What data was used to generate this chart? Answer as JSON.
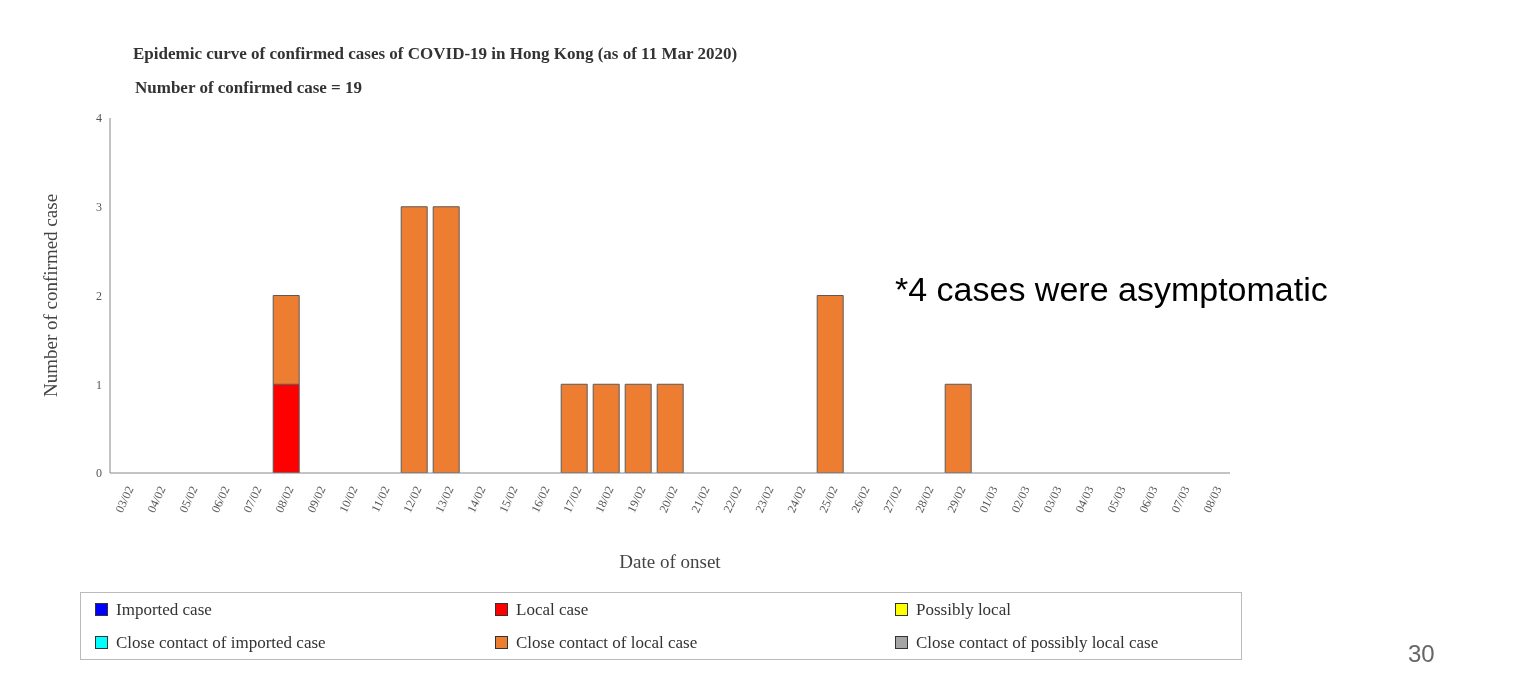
{
  "chart_data": {
    "type": "bar",
    "title": "Epidemic curve of confirmed cases of COVID-19 in Hong Kong (as of 11 Mar 2020)",
    "subtitle": "Number of confirmed case = 19",
    "xlabel": "Date of onset",
    "ylabel": "Number of confirmed case",
    "categories": [
      "03/02",
      "04/02",
      "05/02",
      "06/02",
      "07/02",
      "08/02",
      "09/02",
      "10/02",
      "11/02",
      "12/02",
      "13/02",
      "14/02",
      "15/02",
      "16/02",
      "17/02",
      "18/02",
      "19/02",
      "20/02",
      "21/02",
      "22/02",
      "23/02",
      "24/02",
      "25/02",
      "26/02",
      "27/02",
      "28/02",
      "29/02",
      "01/03",
      "02/03",
      "03/03",
      "04/03",
      "05/03",
      "06/03",
      "07/03",
      "08/03"
    ],
    "stacked": true,
    "ylim": [
      0,
      4
    ],
    "yticks": [
      0,
      1,
      2,
      3,
      4
    ],
    "legend": "bottom",
    "series": [
      {
        "name": "Imported case",
        "color": "#0000ff",
        "values": [
          0,
          0,
          0,
          0,
          0,
          0,
          0,
          0,
          0,
          0,
          0,
          0,
          0,
          0,
          0,
          0,
          0,
          0,
          0,
          0,
          0,
          0,
          0,
          0,
          0,
          0,
          0,
          0,
          0,
          0,
          0,
          0,
          0,
          0,
          0
        ]
      },
      {
        "name": "Local case",
        "color": "#ff0000",
        "values": [
          0,
          0,
          0,
          0,
          0,
          1,
          0,
          0,
          0,
          0,
          0,
          0,
          0,
          0,
          0,
          0,
          0,
          0,
          0,
          0,
          0,
          0,
          0,
          0,
          0,
          0,
          0,
          0,
          0,
          0,
          0,
          0,
          0,
          0,
          0
        ]
      },
      {
        "name": "Possibly local",
        "color": "#ffff00",
        "values": [
          0,
          0,
          0,
          0,
          0,
          0,
          0,
          0,
          0,
          0,
          0,
          0,
          0,
          0,
          0,
          0,
          0,
          0,
          0,
          0,
          0,
          0,
          0,
          0,
          0,
          0,
          0,
          0,
          0,
          0,
          0,
          0,
          0,
          0,
          0
        ]
      },
      {
        "name": "Close contact of imported case",
        "color": "#00ffff",
        "values": [
          0,
          0,
          0,
          0,
          0,
          0,
          0,
          0,
          0,
          0,
          0,
          0,
          0,
          0,
          0,
          0,
          0,
          0,
          0,
          0,
          0,
          0,
          0,
          0,
          0,
          0,
          0,
          0,
          0,
          0,
          0,
          0,
          0,
          0,
          0
        ]
      },
      {
        "name": "Close contact of local case",
        "color": "#ed7d31",
        "values": [
          0,
          0,
          0,
          0,
          0,
          1,
          0,
          0,
          0,
          3,
          3,
          0,
          0,
          0,
          1,
          1,
          1,
          1,
          0,
          0,
          0,
          0,
          2,
          0,
          0,
          0,
          1,
          0,
          0,
          0,
          0,
          0,
          0,
          0,
          0
        ]
      },
      {
        "name": "Close contact of possibly local case",
        "color": "#a5a5a5",
        "values": [
          0,
          0,
          0,
          0,
          0,
          0,
          0,
          0,
          0,
          0,
          0,
          0,
          0,
          0,
          0,
          0,
          0,
          0,
          0,
          0,
          0,
          0,
          0,
          0,
          0,
          0,
          0,
          0,
          0,
          0,
          0,
          0,
          0,
          0,
          0
        ]
      }
    ],
    "annotations": [
      "*4 cases were asymptomatic",
      "30"
    ]
  }
}
